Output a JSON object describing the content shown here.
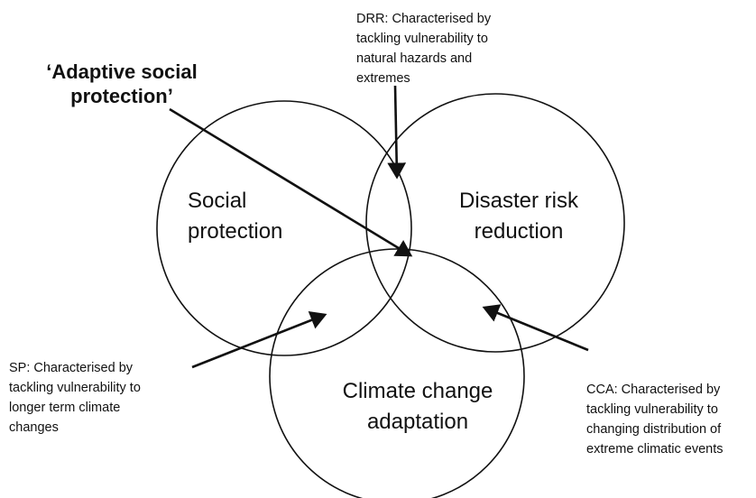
{
  "title": {
    "lines": [
      "‘Adaptive social",
      "protection’"
    ]
  },
  "circles": [
    {
      "lines": [
        "Social",
        "protection"
      ]
    },
    {
      "lines": [
        "Disaster risk",
        "reduction"
      ]
    },
    {
      "lines": [
        "Climate change",
        "adaptation"
      ]
    }
  ],
  "annotations": [
    {
      "lines": [
        "DRR: Characterised by",
        "tackling vulnerability to",
        "natural hazards and",
        "extremes"
      ]
    },
    {
      "lines": [
        "SP: Characterised by",
        "tackling vulnerability to",
        "longer term climate",
        "changes"
      ]
    },
    {
      "lines": [
        "CCA: Characterised by",
        "tackling vulnerability to",
        "changing distribution of",
        "extreme climatic events"
      ]
    }
  ]
}
